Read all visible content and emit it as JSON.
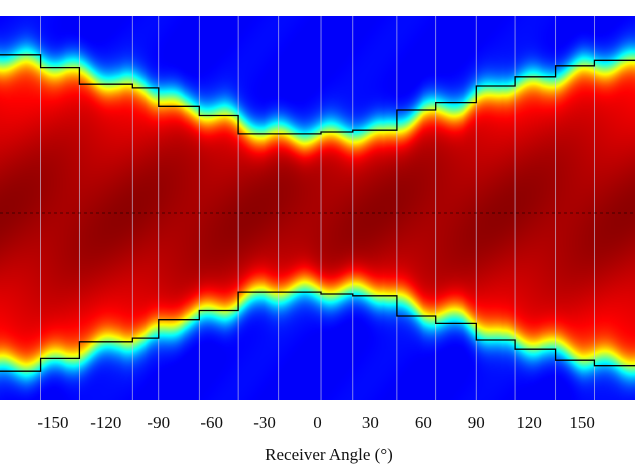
{
  "chart_data": {
    "type": "heatmap",
    "title": "",
    "xlabel": "Receiver Angle (°)",
    "ylabel": "",
    "xlim": [
      -180,
      180
    ],
    "ylim": [
      -1,
      1
    ],
    "x_ticks": [
      -150,
      -120,
      -90,
      -60,
      -30,
      0,
      30,
      60,
      90,
      120,
      150
    ],
    "x_tick_labels": [
      "-150",
      "-120",
      "-90",
      "-60",
      "-30",
      "0",
      "30",
      "60",
      "90",
      "120",
      "150"
    ],
    "colormap": "jet",
    "colors": {
      "background": "#00007f",
      "peak": "#7f0000",
      "bin_lines": "#c8c8e6",
      "envelope": "#000000",
      "center_line": "#000000"
    },
    "angle_bins": [
      -165,
      -142.5,
      -112.5,
      -97.5,
      -75,
      -52.5,
      -30,
      -7.5,
      15,
      37.5,
      60,
      82.5,
      105,
      127.5,
      150,
      172.5
    ],
    "half_width": [
      0.83,
      0.8,
      0.7,
      0.69,
      0.58,
      0.53,
      0.44,
      0.42,
      0.43,
      0.44,
      0.55,
      0.58,
      0.69,
      0.72,
      0.79,
      0.82
    ],
    "envelope_half_width": [
      0.86,
      0.79,
      0.7,
      0.68,
      0.58,
      0.53,
      0.43,
      0.43,
      0.44,
      0.45,
      0.56,
      0.6,
      0.69,
      0.74,
      0.8,
      0.83
    ],
    "envelope_steps": [
      -180,
      -157,
      -135,
      -105,
      -90,
      -67,
      -45,
      -22,
      2,
      20,
      45,
      67,
      90,
      112,
      135,
      157,
      180
    ]
  }
}
